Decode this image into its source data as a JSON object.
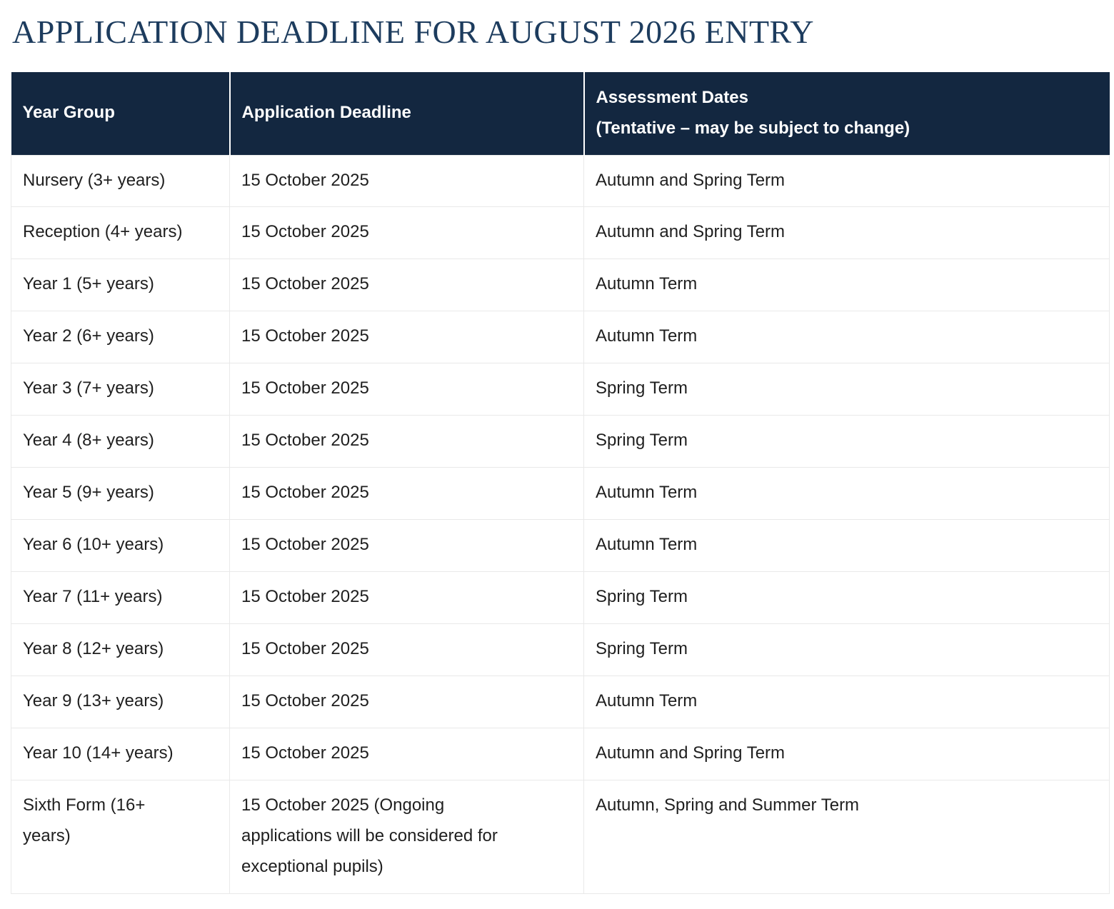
{
  "colors": {
    "header_background": "#132740",
    "header_text": "#ffffff",
    "title_text": "#1d3c5e",
    "body_text": "#1f1f1f",
    "row_border": "#e9e9e9"
  },
  "page": {
    "title": "APPLICATION DEADLINE FOR AUGUST 2026 ENTRY"
  },
  "table": {
    "header": {
      "year_group": "Year Group",
      "application_deadline": "Application Deadline",
      "assessment_dates_line1": "Assessment Dates",
      "assessment_dates_line2": "(Tentative – may be subject to change)"
    },
    "rows": [
      {
        "year_group": "Nursery (3+ years)",
        "application_deadline": "15 October 2025",
        "assessment_dates": "Autumn and Spring Term"
      },
      {
        "year_group": "Reception (4+ years)",
        "application_deadline": "15 October 2025",
        "assessment_dates": "Autumn and Spring Term"
      },
      {
        "year_group": "Year 1 (5+ years)",
        "application_deadline": "15 October 2025",
        "assessment_dates": "Autumn Term"
      },
      {
        "year_group": "Year 2 (6+ years)",
        "application_deadline": "15 October 2025",
        "assessment_dates": "Autumn Term"
      },
      {
        "year_group": "Year 3 (7+ years)",
        "application_deadline": "15 October 2025",
        "assessment_dates": "Spring Term"
      },
      {
        "year_group": "Year 4 (8+ years)",
        "application_deadline": "15 October 2025",
        "assessment_dates": "Spring Term"
      },
      {
        "year_group": "Year 5 (9+ years)",
        "application_deadline": "15 October 2025",
        "assessment_dates": "Autumn Term"
      },
      {
        "year_group": "Year 6 (10+ years)",
        "application_deadline": "15 October 2025",
        "assessment_dates": "Autumn Term"
      },
      {
        "year_group": "Year 7 (11+ years)",
        "application_deadline": "15 October 2025",
        "assessment_dates": "Spring Term"
      },
      {
        "year_group": "Year 8 (12+ years)",
        "application_deadline": "15 October 2025",
        "assessment_dates": "Spring Term"
      },
      {
        "year_group": "Year 9 (13+ years)",
        "application_deadline": "15 October 2025",
        "assessment_dates": "Autumn Term"
      },
      {
        "year_group": "Year 10 (14+ years)",
        "application_deadline": "15 October 2025",
        "assessment_dates": "Autumn and Spring Term"
      },
      {
        "year_group": "Sixth Form (16+ years)",
        "application_deadline": "15 October 2025 (Ongoing applications will be considered for exceptional pupils)",
        "assessment_dates": "Autumn, Spring and Summer Term"
      }
    ]
  }
}
